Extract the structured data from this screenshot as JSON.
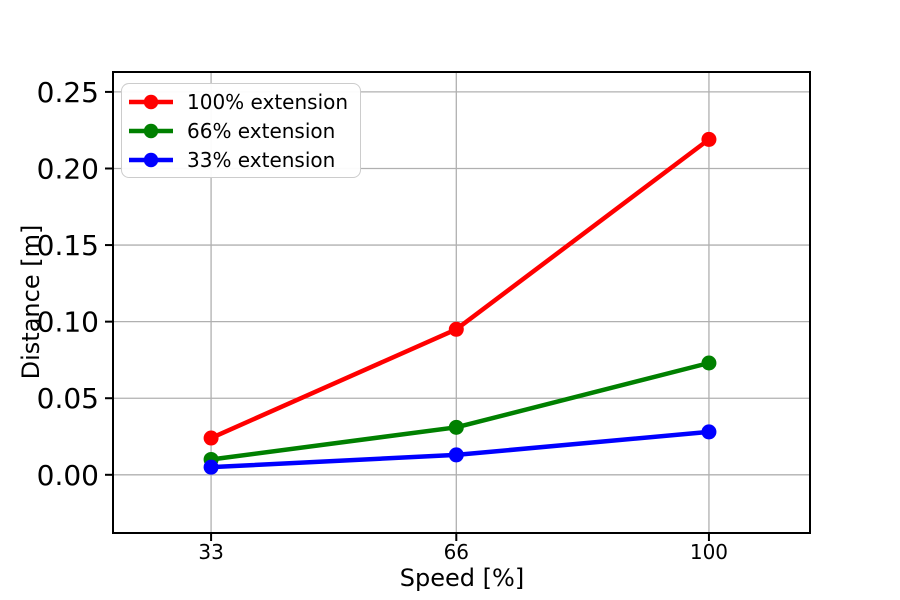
{
  "figure": {
    "background": "#ffffff"
  },
  "chart_data": {
    "type": "line",
    "title": "",
    "xlabel": "Speed [%]",
    "ylabel": "Distance [m]",
    "x": [
      33,
      66,
      100
    ],
    "x_tick_labels": [
      "33",
      "66",
      "100"
    ],
    "y_ticks": [
      0,
      0.05,
      0.1,
      0.15,
      0.2,
      0.25
    ],
    "y_tick_labels": [
      "0.00",
      "0.05",
      "0.10",
      "0.15",
      "0.20",
      "0.25"
    ],
    "xlim": [
      19.8,
      113.6
    ],
    "ylim": [
      -0.038,
      0.263
    ],
    "grid": true,
    "legend_position": "upper left",
    "series": [
      {
        "name": "100% extension",
        "color": "#ff0000",
        "values": [
          0.024,
          0.095,
          0.219
        ]
      },
      {
        "name": "66% extension",
        "color": "#008000",
        "values": [
          0.01,
          0.031,
          0.073
        ]
      },
      {
        "name": "33% extension",
        "color": "#0000ff",
        "values": [
          0.005,
          0.013,
          0.028
        ]
      }
    ],
    "colors": {
      "grid": "#b0b0b0",
      "axis": "#000000",
      "text": "#000000"
    }
  }
}
